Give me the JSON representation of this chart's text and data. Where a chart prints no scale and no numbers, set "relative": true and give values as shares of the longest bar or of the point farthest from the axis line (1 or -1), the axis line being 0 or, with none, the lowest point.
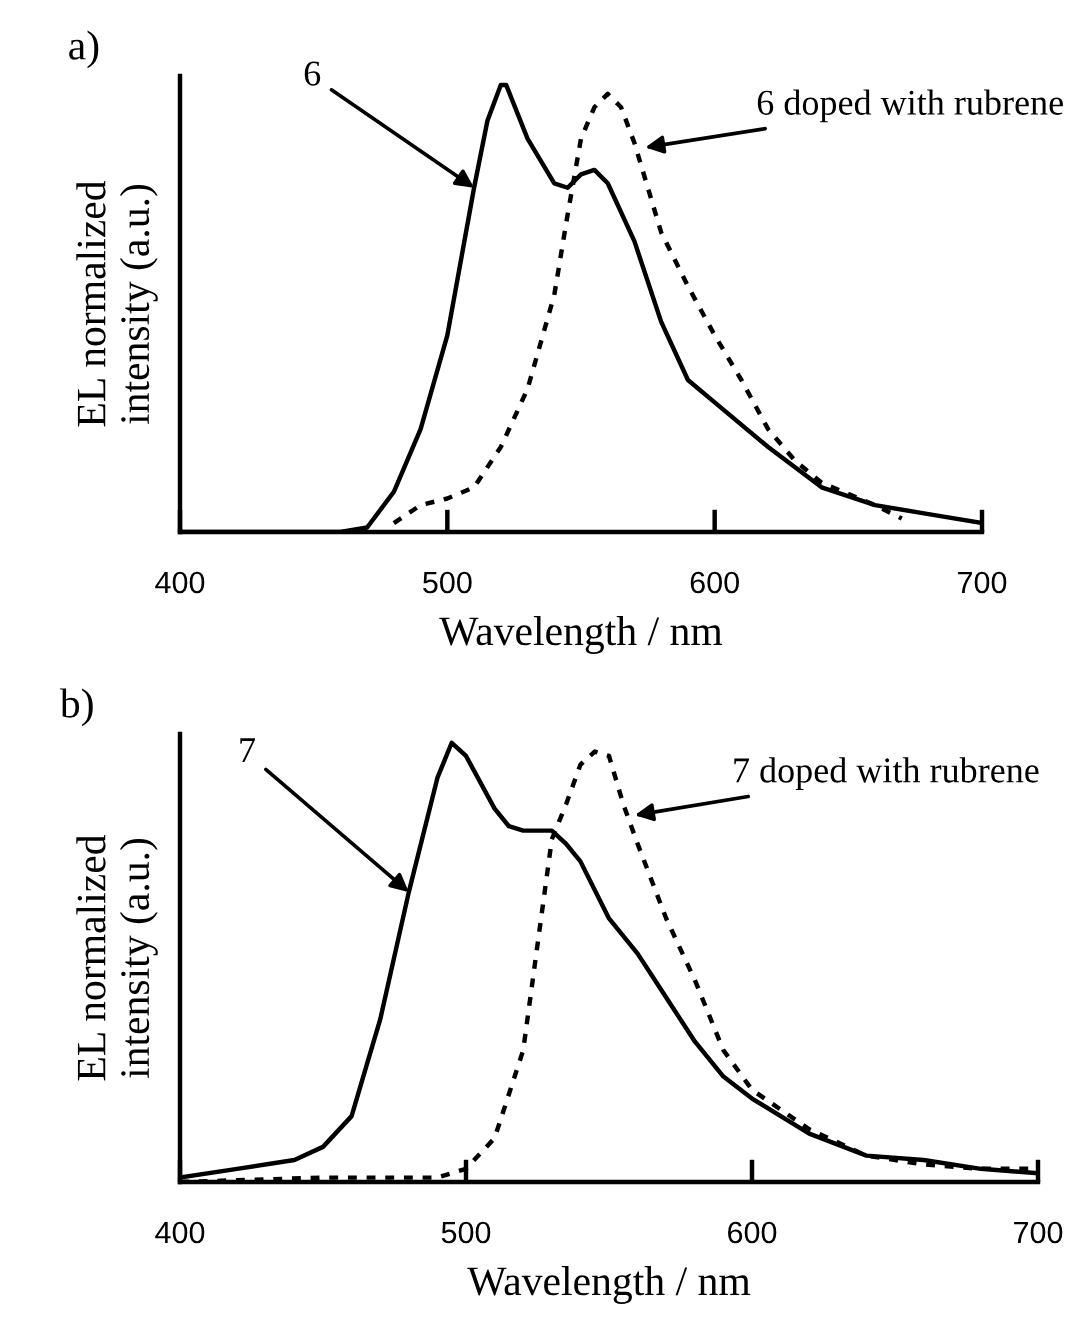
{
  "chart_data": [
    {
      "type": "line",
      "title": "a)",
      "xlabel": "Wavelength / nm",
      "ylabel": "EL normalized\nintensity (a.u.)",
      "relative": true,
      "xlim": [
        400,
        700
      ],
      "xticks": [
        400,
        500,
        600,
        700
      ],
      "grid": false,
      "legend": false,
      "marker": "none",
      "series": [
        {
          "color": "#000000",
          "line_style": "solid",
          "x": [
            400,
            460,
            470,
            480,
            490,
            500,
            510,
            515,
            520,
            522,
            530,
            540,
            545,
            550,
            555,
            560,
            570,
            580,
            590,
            600,
            620,
            640,
            660,
            680,
            700
          ],
          "values": [
            0,
            0,
            0.01,
            0.09,
            0.23,
            0.44,
            0.77,
            0.92,
            1.0,
            1.0,
            0.88,
            0.78,
            0.77,
            0.8,
            0.81,
            0.78,
            0.65,
            0.47,
            0.34,
            0.29,
            0.19,
            0.1,
            0.06,
            0.04,
            0.02
          ]
        },
        {
          "color": "#000000",
          "line_style": "dotted",
          "x": [
            480,
            490,
            500,
            510,
            520,
            530,
            540,
            545,
            550,
            555,
            560,
            565,
            570,
            580,
            590,
            600,
            610,
            620,
            630,
            640,
            660,
            670
          ],
          "values": [
            0.02,
            0.06,
            0.075,
            0.1,
            0.19,
            0.32,
            0.53,
            0.71,
            0.88,
            0.95,
            0.98,
            0.95,
            0.87,
            0.67,
            0.55,
            0.44,
            0.34,
            0.23,
            0.16,
            0.11,
            0.06,
            0.03
          ]
        }
      ],
      "annotations": [
        {
          "text": "6",
          "x": 510,
          "y": 0.77
        },
        {
          "text": "6 doped with rubrene",
          "x": 574,
          "y": 0.86
        }
      ]
    },
    {
      "type": "line",
      "title": "b)",
      "xlabel": "Wavelength / nm",
      "ylabel": "EL normalized\nintensity (a.u.)",
      "relative": true,
      "xlim": [
        400,
        700
      ],
      "xticks": [
        400,
        500,
        600,
        700
      ],
      "grid": false,
      "legend": false,
      "marker": "none",
      "series": [
        {
          "color": "#000000",
          "line_style": "solid",
          "x": [
            400,
            420,
            440,
            450,
            460,
            470,
            480,
            490,
            495,
            500,
            510,
            515,
            520,
            530,
            535,
            540,
            550,
            560,
            570,
            580,
            590,
            600,
            620,
            640,
            660,
            680,
            700
          ],
          "values": [
            0.01,
            0.03,
            0.05,
            0.08,
            0.15,
            0.37,
            0.66,
            0.92,
            1.0,
            0.97,
            0.85,
            0.81,
            0.8,
            0.8,
            0.77,
            0.73,
            0.6,
            0.52,
            0.42,
            0.32,
            0.24,
            0.19,
            0.11,
            0.06,
            0.05,
            0.03,
            0.02
          ]
        },
        {
          "color": "#000000",
          "line_style": "dotted",
          "x": [
            400,
            450,
            490,
            500,
            510,
            520,
            530,
            535,
            540,
            545,
            550,
            555,
            560,
            570,
            580,
            590,
            600,
            620,
            640,
            660,
            680,
            700
          ],
          "values": [
            0,
            0.01,
            0.01,
            0.03,
            0.1,
            0.3,
            0.78,
            0.86,
            0.95,
            0.98,
            0.97,
            0.86,
            0.77,
            0.6,
            0.46,
            0.3,
            0.21,
            0.12,
            0.06,
            0.04,
            0.03,
            0.03
          ]
        }
      ],
      "annotations": [
        {
          "text": "7",
          "x": 480,
          "y": 0.66
        },
        {
          "text": "7 doped with rubrene",
          "x": 559,
          "y": 0.835
        }
      ]
    }
  ]
}
